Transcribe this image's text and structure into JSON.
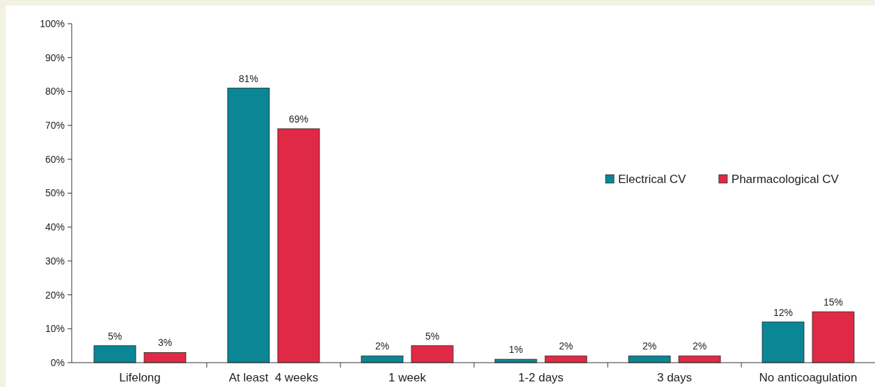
{
  "chart_data": {
    "type": "bar",
    "categories": [
      "Lifelong",
      "At least  4 weeks",
      "1 week",
      "1-2 days",
      "3 days",
      "No anticoagulation"
    ],
    "series": [
      {
        "name": "Electrical CV",
        "color": "#0a8694",
        "values": [
          5,
          81,
          2,
          1,
          2,
          12
        ],
        "value_labels": [
          "5%",
          "81%",
          "2%",
          "1%",
          "2%",
          "12%"
        ]
      },
      {
        "name": "Pharmacological CV",
        "color": "#e02a45",
        "values": [
          3,
          69,
          5,
          2,
          2,
          15
        ],
        "value_labels": [
          "3%",
          "69%",
          "5%",
          "2%",
          "2%",
          "15%"
        ]
      }
    ],
    "ylim": [
      0,
      100
    ],
    "yticks": [
      {
        "value": 0,
        "label": "0%"
      },
      {
        "value": 10,
        "label": "10%"
      },
      {
        "value": 20,
        "label": "20%"
      },
      {
        "value": 30,
        "label": "30%"
      },
      {
        "value": 40,
        "label": "40%"
      },
      {
        "value": 50,
        "label": "50%"
      },
      {
        "value": 60,
        "label": "60%"
      },
      {
        "value": 70,
        "label": "70%"
      },
      {
        "value": 80,
        "label": "80%"
      },
      {
        "value": 90,
        "label": "90%"
      },
      {
        "value": 100,
        "label": "100%"
      }
    ],
    "grid": false,
    "legend": "right"
  }
}
